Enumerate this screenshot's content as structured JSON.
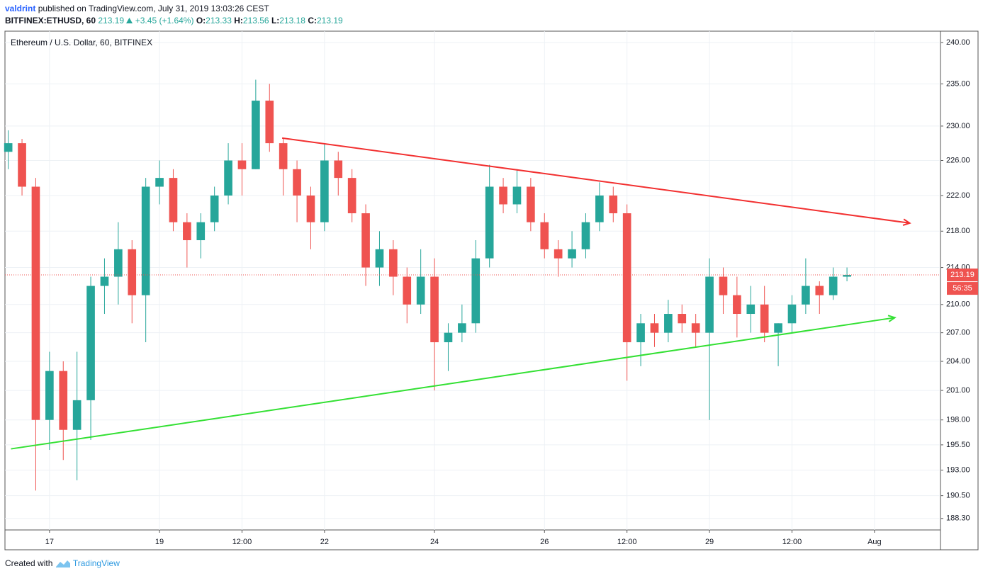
{
  "header": {
    "author": "valdrint",
    "published": "published on TradingView.com, July 31, 2019 13:03:26 CEST",
    "symbol": "BITFINEX:ETHUSD, 60",
    "last": 213.19,
    "change": "+3.45 (+1.64%)",
    "open_label": "O:",
    "open": 213.33,
    "high_label": "H:",
    "high": 213.56,
    "low_label": "L:",
    "low": 213.18,
    "close_label": "C:",
    "close": 213.19
  },
  "footer": {
    "created": "Created with",
    "brand": "TradingView"
  },
  "chart_data": {
    "type": "candlestick",
    "title": "Ethereum / U.S. Dollar, 60, BITFINEX",
    "x": [
      16.25,
      16.5,
      16.75,
      17,
      17.25,
      17.5,
      17.75,
      18,
      18.25,
      18.5,
      18.75,
      19,
      19.25,
      19.5,
      19.75,
      20,
      20.25,
      20.5,
      20.75,
      21,
      21.25,
      21.5,
      21.75,
      22,
      22.25,
      22.5,
      22.75,
      23,
      23.25,
      23.5,
      23.75,
      24,
      24.25,
      24.5,
      24.75,
      25,
      25.25,
      25.5,
      25.75,
      26,
      26.25,
      26.5,
      26.75,
      27,
      27.25,
      27.5,
      27.75,
      28,
      28.25,
      28.5,
      28.75,
      29,
      29.25,
      29.5,
      29.75,
      30,
      30.25,
      30.5,
      30.75,
      31,
      31.25,
      31.5
    ],
    "open": [
      227,
      228,
      223,
      198,
      203,
      197,
      200,
      212,
      213,
      216,
      211,
      223,
      224,
      219,
      217,
      219,
      222,
      226,
      225,
      233,
      228,
      225,
      222,
      219,
      226,
      224,
      220,
      214,
      216,
      213,
      210,
      213,
      206,
      207,
      208,
      215,
      223,
      221,
      223,
      219,
      216,
      215,
      216,
      219,
      222,
      220,
      206,
      208,
      207,
      209,
      208,
      207,
      213,
      211,
      209,
      210,
      207,
      208,
      210,
      212,
      211,
      213
    ],
    "high": [
      229.5,
      228.5,
      224,
      205,
      204,
      205,
      213,
      215,
      219,
      217,
      224,
      226,
      225,
      220,
      220,
      223,
      228,
      228,
      235.5,
      235,
      228.5,
      226,
      223,
      228,
      227,
      225,
      221,
      218,
      217,
      214,
      216,
      215,
      208,
      210,
      217,
      225.5,
      224,
      225,
      224,
      220,
      217,
      218,
      220,
      223.5,
      223,
      221,
      209,
      209,
      210.5,
      210,
      209,
      215,
      214,
      213,
      212,
      212,
      208,
      211,
      215,
      212.5,
      214,
      214
    ],
    "low": [
      225,
      222,
      191,
      195,
      194,
      192,
      196,
      209,
      210,
      208,
      206,
      221,
      218,
      214,
      215,
      218,
      221,
      222,
      225,
      227,
      222,
      219,
      216,
      218,
      222,
      219,
      212,
      212,
      211,
      208,
      209,
      201,
      203,
      206,
      207,
      214,
      220,
      220,
      218,
      215,
      213,
      214,
      215,
      218,
      219,
      202,
      203.5,
      205.5,
      206,
      207,
      205.5,
      198,
      209,
      206.5,
      207,
      206,
      203.5,
      207,
      209,
      209,
      210.5,
      212.5
    ],
    "close": [
      228,
      223,
      198,
      203,
      197,
      200,
      212,
      213,
      216,
      211,
      223,
      224,
      219,
      217,
      219,
      222,
      226,
      225,
      233,
      228,
      225,
      222,
      219,
      226,
      224,
      220,
      214,
      216,
      213,
      210,
      213,
      206,
      207,
      208,
      215,
      223,
      221,
      223,
      219,
      216,
      215,
      216,
      219,
      222,
      220,
      206,
      208,
      207,
      209,
      208,
      207,
      213,
      211,
      209,
      210,
      207,
      208,
      210,
      212,
      211,
      213,
      213.19
    ],
    "up_color": "#26a69a",
    "down_color": "#ef5350",
    "xlim": [
      16.19,
      33.2
    ],
    "xticks": [
      17,
      19,
      {
        "value": 20.5,
        "label": "12:00"
      },
      22,
      24,
      26,
      {
        "value": 27.5,
        "label": "12:00"
      },
      29,
      {
        "value": 30.5,
        "label": "12:00"
      },
      {
        "value": 32,
        "label": "Aug"
      }
    ],
    "ylim": [
      187.2,
      241.4
    ],
    "log_scale": true,
    "grid": true,
    "yticks": [
      {
        "value": 240,
        "label": "240.00"
      },
      {
        "value": 235,
        "label": "235.00"
      },
      {
        "value": 230,
        "label": "230.00"
      },
      {
        "value": 226,
        "label": "226.00"
      },
      {
        "value": 222,
        "label": "222.00"
      },
      {
        "value": 218,
        "label": "218.00"
      },
      {
        "value": 214,
        "label": "214.00"
      },
      {
        "value": 210,
        "label": "210.00"
      },
      {
        "value": 207,
        "label": "207.00"
      },
      {
        "value": 204,
        "label": "204.00"
      },
      {
        "value": 201,
        "label": "201.00"
      },
      {
        "value": 198,
        "label": "198.00"
      },
      {
        "value": 195.5,
        "label": "195.50"
      },
      {
        "value": 193,
        "label": "193.00"
      },
      {
        "value": 190.5,
        "label": "190.50"
      },
      {
        "value": 188.3,
        "label": "188.30"
      }
    ],
    "last_price": 213.19,
    "last_price_color": "#ef5350",
    "countdown": "56:35",
    "trendlines": [
      {
        "color": "#f23030",
        "x": [
          21.23,
          32.64
        ],
        "y": [
          228.6,
          218.9
        ]
      },
      {
        "color": "#33e033",
        "x": [
          16.3,
          32.37
        ],
        "y": [
          195.1,
          208.6
        ]
      }
    ]
  }
}
